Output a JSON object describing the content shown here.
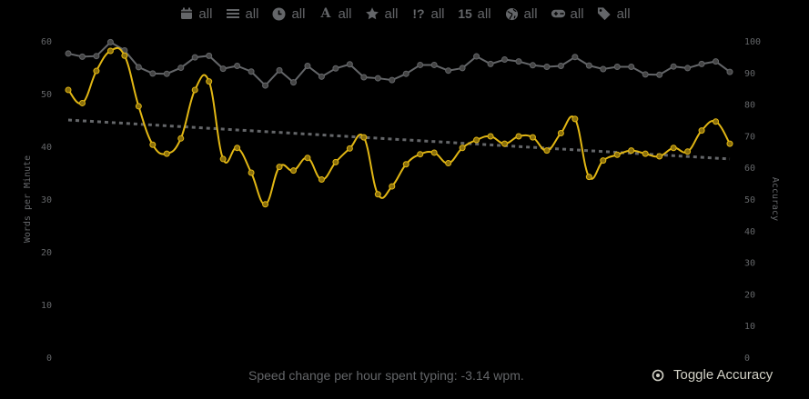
{
  "filters": [
    {
      "icon": "calendar-icon",
      "label": "all"
    },
    {
      "icon": "list-icon",
      "label": "all"
    },
    {
      "icon": "clock-icon",
      "label": "all"
    },
    {
      "icon": "font-icon",
      "label": "all"
    },
    {
      "icon": "star-icon",
      "label": "all"
    },
    {
      "icon": "punctuation-icon",
      "label": "all"
    },
    {
      "icon": "numbers-icon",
      "label": "all"
    },
    {
      "icon": "globe-icon",
      "label": "all"
    },
    {
      "icon": "gamepad-icon",
      "label": "all"
    },
    {
      "icon": "tags-icon",
      "label": "all"
    }
  ],
  "filter_icon_texts": {
    "font": "A",
    "punctuation": "!?",
    "numbers": "15"
  },
  "footer": {
    "speed_change": "Speed change per hour spent typing: -3.14 wpm.",
    "toggle_label": "Toggle Accuracy"
  },
  "colors": {
    "background": "#000000",
    "wpm_line": "#e2b714",
    "accuracy_line": "#646669",
    "trend_line": "#646669",
    "text": "#646669",
    "toggle_text": "#d1d0c5"
  },
  "chart_data": {
    "type": "line",
    "xlabel": "",
    "ylabel": "Words per Minute",
    "y2label": "Accuracy",
    "ylim": [
      0,
      60
    ],
    "y2lim": [
      0,
      100
    ],
    "yticks": [
      0,
      10,
      20,
      30,
      40,
      50,
      60
    ],
    "y2ticks": [
      0,
      10,
      20,
      30,
      40,
      50,
      60,
      70,
      80,
      90,
      100
    ],
    "grid": false,
    "series": [
      {
        "name": "wpm",
        "axis": "left",
        "values": [
          50.7,
          48.2,
          54.3,
          58.1,
          57.2,
          47.6,
          40.3,
          38.6,
          41.5,
          50.7,
          52.3,
          37.6,
          39.7,
          35.0,
          29.0,
          36.1,
          35.4,
          37.8,
          33.7,
          37.0,
          39.6,
          41.7,
          30.9,
          32.4,
          36.6,
          38.5,
          38.8,
          36.8,
          39.7,
          41.2,
          41.9,
          40.5,
          41.9,
          41.7,
          39.2,
          42.5,
          45.2,
          34.2,
          37.3,
          38.4,
          39.2,
          38.6,
          38.1,
          39.7,
          39.0,
          43.0,
          44.7,
          40.5
        ]
      },
      {
        "name": "accuracy",
        "axis": "right",
        "values": [
          96,
          95,
          95.2,
          99.6,
          97,
          91.7,
          89.7,
          89.6,
          91.5,
          94.8,
          95.3,
          91.2,
          92.1,
          90.3,
          85.9,
          90.7,
          86.9,
          92.1,
          88.7,
          91.3,
          92.6,
          88.5,
          88.2,
          87.6,
          89.6,
          92.4,
          92.4,
          90.6,
          91.4,
          95.1,
          92.7,
          94.1,
          93.5,
          92.3,
          91.8,
          92.1,
          94.9,
          92.2,
          91.1,
          91.8,
          91.8,
          89.4,
          89.3,
          91.9,
          91.4,
          92.7,
          93.5,
          90.2
        ]
      }
    ],
    "trendline": {
      "start": 45.0,
      "end": 37.6
    }
  }
}
